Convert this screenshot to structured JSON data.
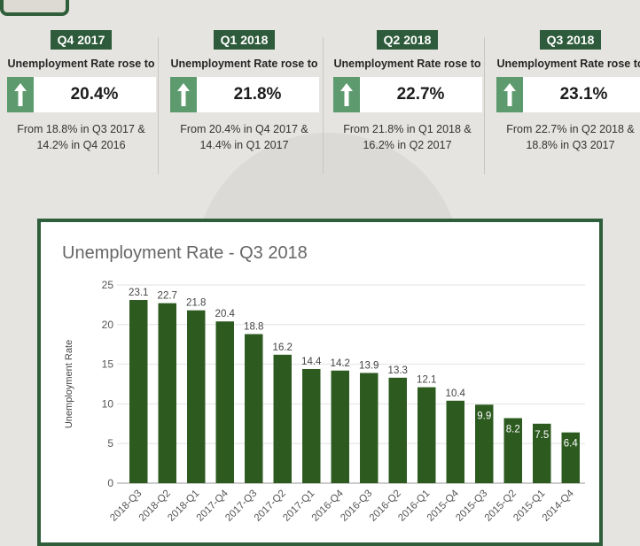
{
  "cards": [
    {
      "badge": "Q4 2017",
      "rose": "Unemployment Rate rose to",
      "value": "20.4%",
      "from_line1": "From 18.8% in Q3 2017 &",
      "from_line2": "14.2% in Q4 2016"
    },
    {
      "badge": "Q1 2018",
      "rose": "Unemployment Rate rose to",
      "value": "21.8%",
      "from_line1": "From 20.4% in Q4 2017 &",
      "from_line2": "14.4% in Q1 2017"
    },
    {
      "badge": "Q2 2018",
      "rose": "Unemployment Rate rose to",
      "value": "22.7%",
      "from_line1": "From 21.8% in Q1 2018 &",
      "from_line2": "16.2% in Q2 2017"
    },
    {
      "badge": "Q3 2018",
      "rose": "Unemployment Rate rose to",
      "value": "23.1%",
      "from_line1": "From 22.7% in Q2 2018 &",
      "from_line2": "18.8% in Q3 2017"
    }
  ],
  "icons": {
    "trend": "up-arrow-icon"
  },
  "colors": {
    "badge": "#2e5b3b",
    "arrow_box": "#5d9a6e",
    "bar": "#2c5a1f",
    "frame": "#2f5e3a"
  },
  "chart_data": {
    "type": "bar",
    "title": "Unemployment Rate - Q3 2018",
    "xlabel": "",
    "ylabel": "Unemployment Rate",
    "ylim": [
      0,
      25
    ],
    "yticks": [
      0,
      5,
      10,
      15,
      20,
      25
    ],
    "grid": true,
    "categories": [
      "2018-Q3",
      "2018-Q2",
      "2018-Q1",
      "2017-Q4",
      "2017-Q3",
      "2017-Q2",
      "2017-Q1",
      "2016-Q4",
      "2016-Q3",
      "2016-Q2",
      "2016-Q1",
      "2015-Q4",
      "2015-Q3",
      "2015-Q2",
      "2015-Q1",
      "2014-Q4"
    ],
    "values": [
      23.1,
      22.7,
      21.8,
      20.4,
      18.8,
      16.2,
      14.4,
      14.2,
      13.9,
      13.3,
      12.1,
      10.4,
      9.9,
      8.2,
      7.5,
      6.4
    ]
  }
}
